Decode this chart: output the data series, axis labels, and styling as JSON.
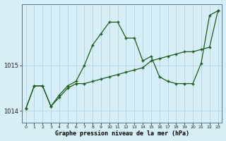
{
  "title": "Graphe pression niveau de la mer (hPa)",
  "bg_color": "#d6eef5",
  "line_color": "#1e5c1e",
  "hours": [
    0,
    1,
    2,
    3,
    4,
    5,
    6,
    7,
    8,
    9,
    10,
    11,
    12,
    13,
    14,
    15,
    16,
    17,
    18,
    19,
    20,
    21,
    22,
    23
  ],
  "series_jagged": [
    1014.05,
    1014.55,
    1014.55,
    1014.1,
    1014.35,
    1014.55,
    1014.65,
    1015.0,
    1015.45,
    1015.7,
    1015.95,
    1015.95,
    1015.6,
    1015.6,
    1015.1,
    1015.2,
    1014.75,
    1014.65,
    1014.6,
    1014.6,
    1014.6,
    1015.05,
    1016.1,
    1016.2
  ],
  "series_smooth": [
    1014.05,
    1014.55,
    1014.55,
    1014.1,
    1014.3,
    1014.5,
    1014.6,
    1014.6,
    1014.65,
    1014.7,
    1014.75,
    1014.8,
    1014.85,
    1014.9,
    1014.95,
    1015.1,
    1015.15,
    1015.2,
    1015.25,
    1015.3,
    1015.3,
    1015.35,
    1015.4,
    1016.2
  ],
  "ylim": [
    1013.75,
    1016.35
  ],
  "yticks": [
    1014,
    1015
  ],
  "ytick_labels": [
    "1014",
    "1015"
  ]
}
